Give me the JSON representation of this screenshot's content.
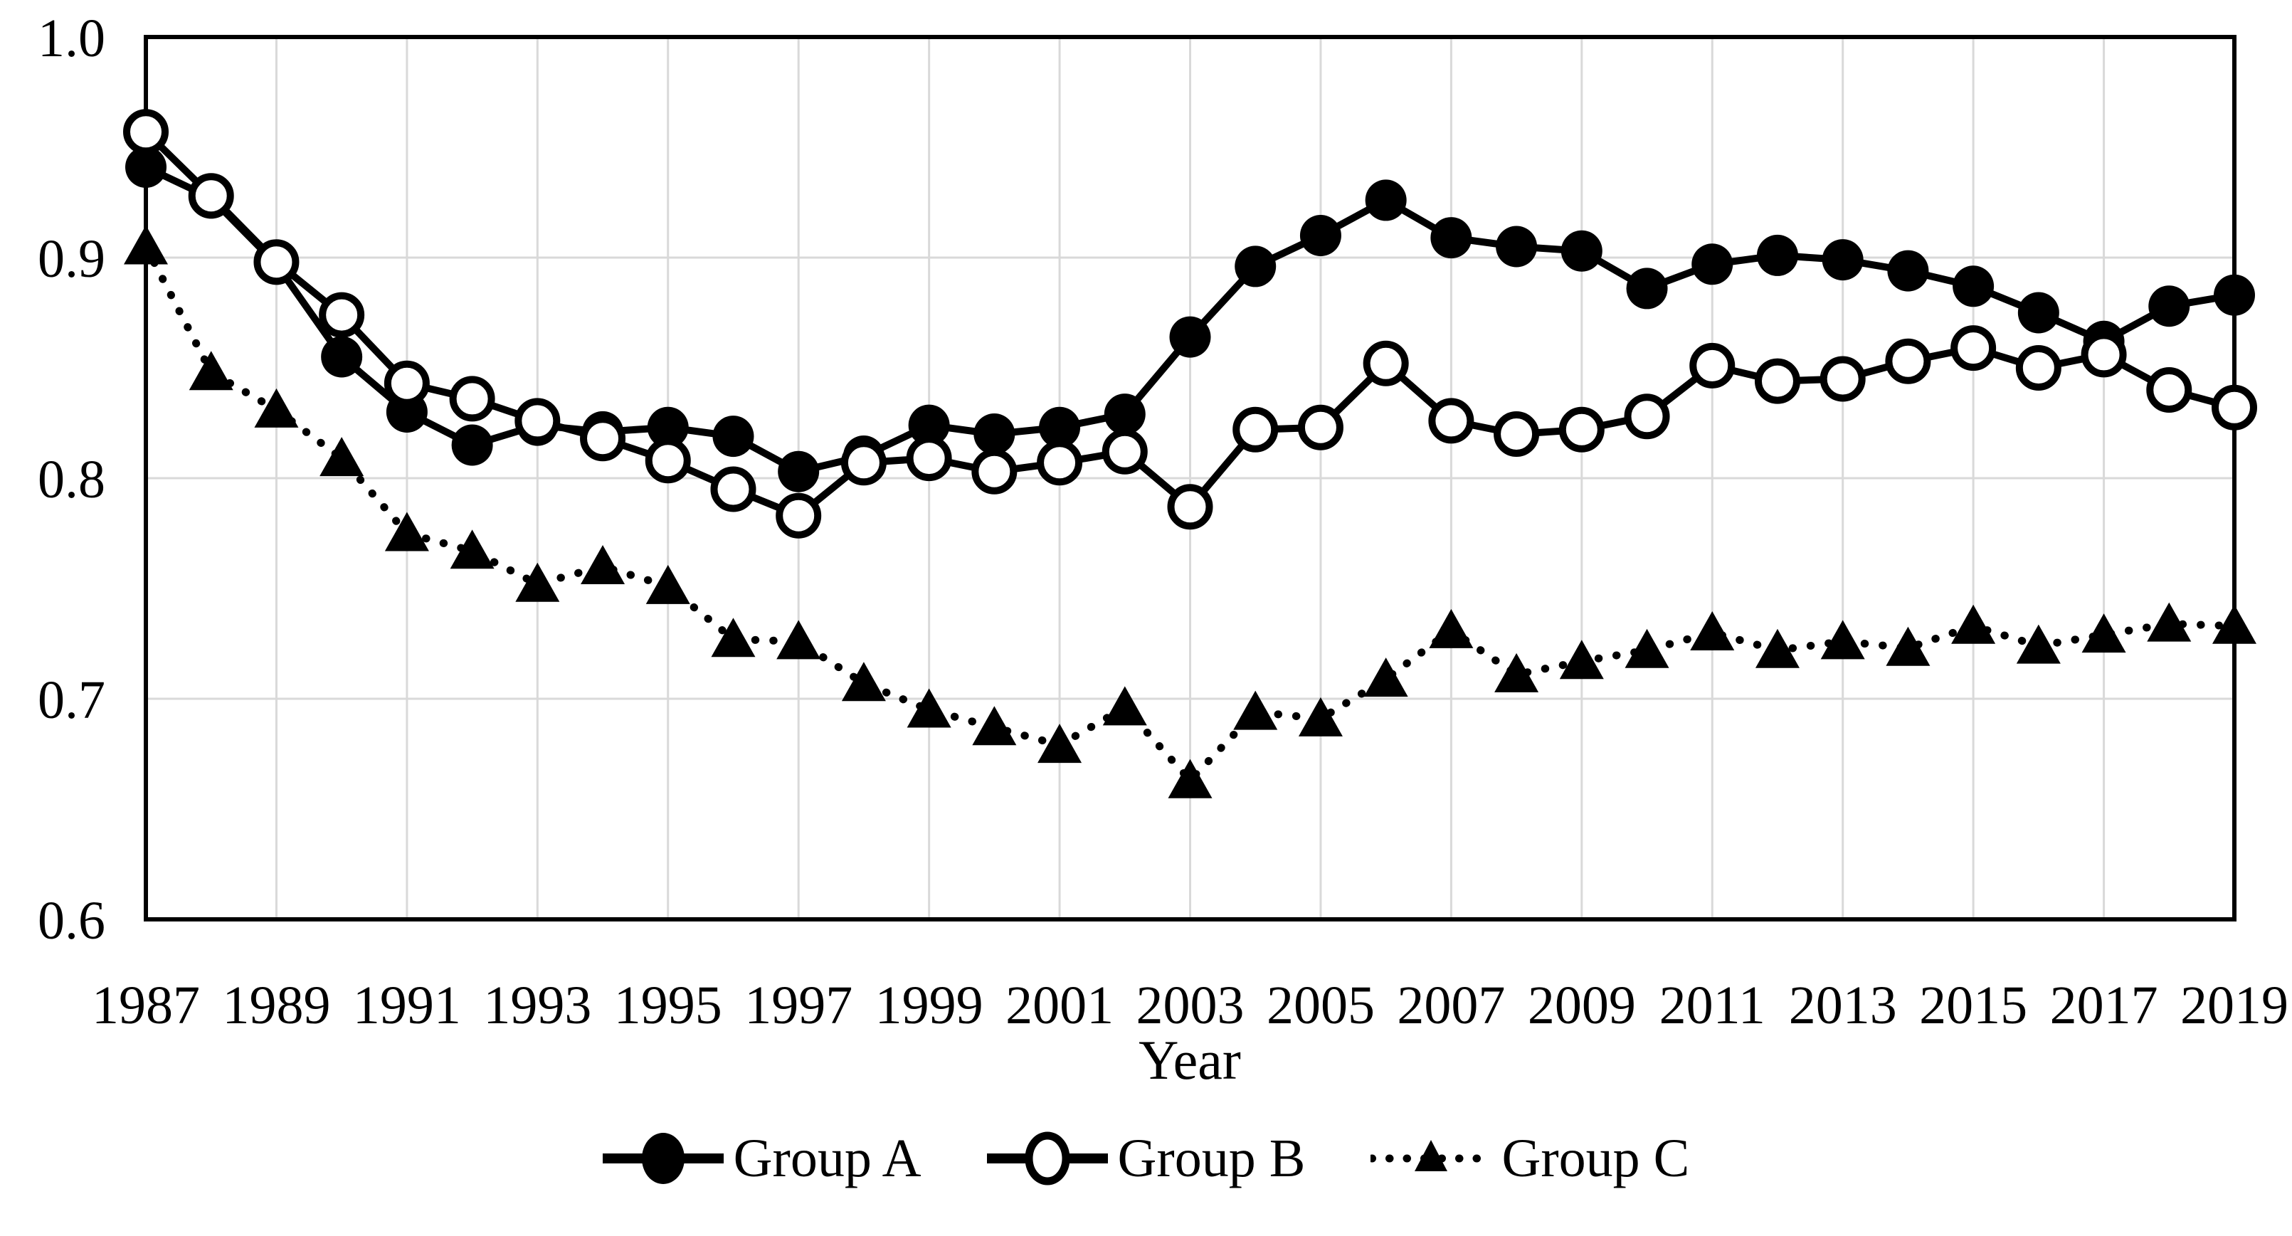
{
  "figure": {
    "background_color": "#ffffff",
    "accent_color": "#000000",
    "grid_color": "#d9d9d9"
  },
  "chart_data": {
    "type": "line",
    "title": "",
    "xlabel": "Year",
    "ylabel": "",
    "xlim": [
      1987,
      2019
    ],
    "ylim": [
      0.6,
      1.0
    ],
    "grid": true,
    "grid_color": "#d9d9d9",
    "axis_color": "#000000",
    "legend_position": "bottom-center",
    "x": [
      1987,
      1988,
      1989,
      1990,
      1991,
      1992,
      1993,
      1994,
      1995,
      1996,
      1997,
      1998,
      1999,
      2000,
      2001,
      2002,
      2003,
      2004,
      2005,
      2006,
      2007,
      2008,
      2009,
      2010,
      2011,
      2012,
      2013,
      2014,
      2015,
      2016,
      2017,
      2018,
      2019
    ],
    "x_tick_labels": [
      "1987",
      "1989",
      "1991",
      "1993",
      "1995",
      "1997",
      "1999",
      "2001",
      "2003",
      "2005",
      "2007",
      "2009",
      "2011",
      "2013",
      "2015",
      "2017",
      "2019"
    ],
    "y_ticks": [
      1.0,
      0.9,
      0.8,
      0.7,
      0.6
    ],
    "y_tick_labels": [
      "1.0",
      "0.9",
      "0.8",
      "0.7",
      "0.6"
    ],
    "series": [
      {
        "name": "Group A",
        "marker": "filled-circle",
        "line_style": "solid",
        "color": "#000000",
        "values": [
          0.941,
          0.927,
          0.897,
          0.855,
          0.83,
          0.815,
          0.824,
          0.821,
          0.823,
          0.819,
          0.803,
          0.81,
          0.824,
          0.82,
          0.823,
          0.829,
          0.864,
          0.896,
          0.91,
          0.926,
          0.909,
          0.905,
          0.903,
          0.886,
          0.897,
          0.901,
          0.899,
          0.894,
          0.887,
          0.875,
          0.862,
          0.878,
          0.883
        ]
      },
      {
        "name": "Group B",
        "marker": "open-circle",
        "line_style": "solid",
        "color": "#000000",
        "values": [
          0.957,
          0.928,
          0.898,
          0.874,
          0.843,
          0.836,
          0.826,
          0.818,
          0.808,
          0.795,
          0.783,
          0.807,
          0.809,
          0.803,
          0.807,
          0.812,
          0.787,
          0.822,
          0.823,
          0.852,
          0.826,
          0.82,
          0.822,
          0.828,
          0.851,
          0.844,
          0.845,
          0.853,
          0.859,
          0.85,
          0.856,
          0.84,
          0.832
        ]
      },
      {
        "name": "Group C",
        "marker": "filled-triangle",
        "line_style": "dotted",
        "color": "#000000",
        "values": [
          0.905,
          0.848,
          0.831,
          0.809,
          0.775,
          0.767,
          0.752,
          0.76,
          0.751,
          0.727,
          0.726,
          0.707,
          0.695,
          0.687,
          0.679,
          0.696,
          0.663,
          0.694,
          0.691,
          0.709,
          0.731,
          0.711,
          0.717,
          0.722,
          0.73,
          0.722,
          0.726,
          0.723,
          0.733,
          0.724,
          0.729,
          0.734,
          0.733
        ]
      }
    ]
  }
}
